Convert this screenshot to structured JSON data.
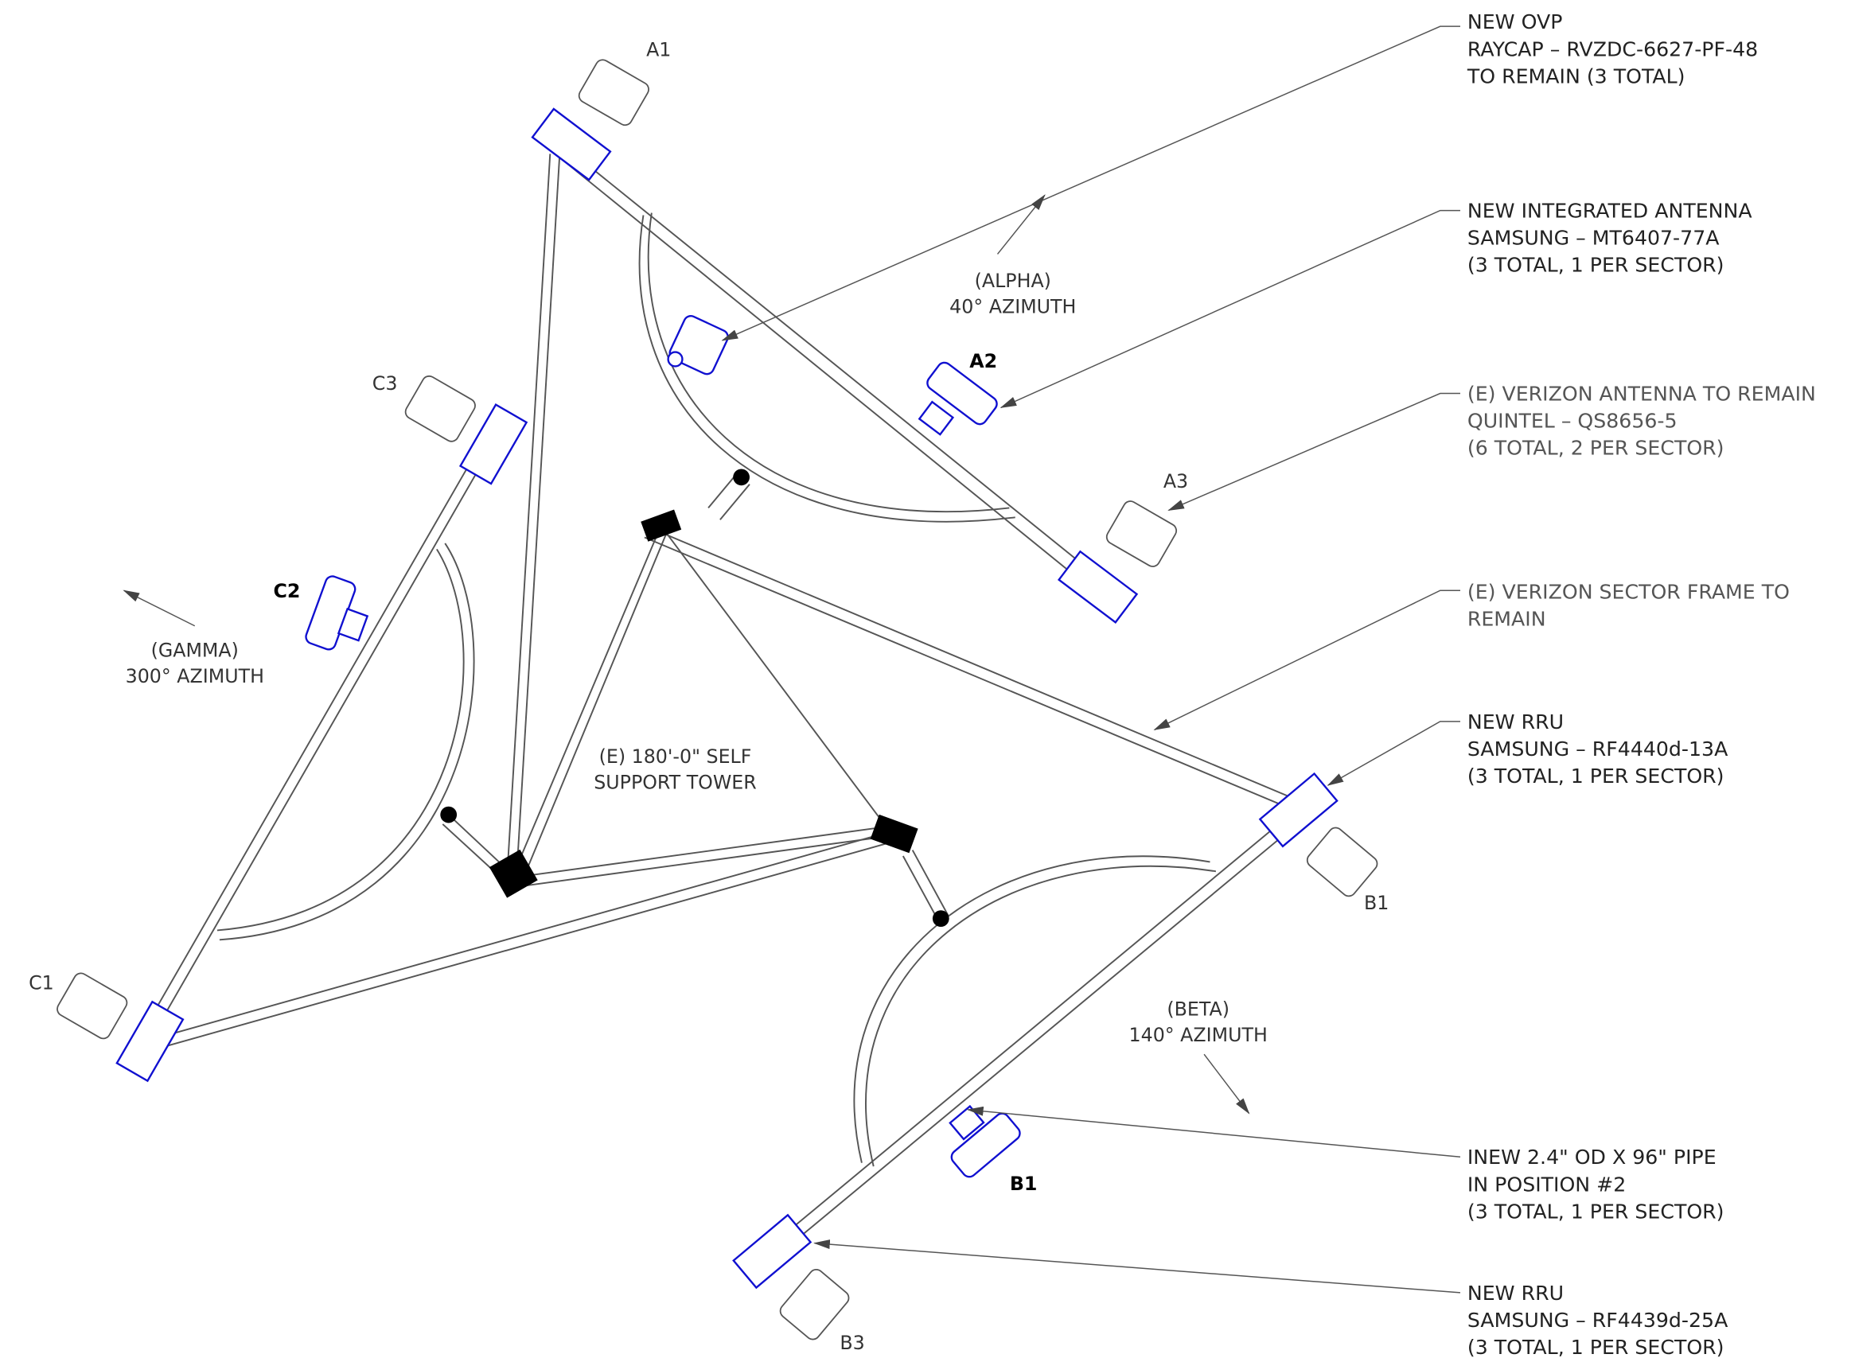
{
  "sectors": [
    {
      "name": "(ALPHA)",
      "azimuth": "40° AZIMUTH"
    },
    {
      "name": "(BETA)",
      "azimuth": "140° AZIMUTH"
    },
    {
      "name": "(GAMMA)",
      "azimuth": "300° AZIMUTH"
    }
  ],
  "tower": [
    "(E) 180'-0\" SELF",
    "SUPPORT TOWER"
  ],
  "positions": [
    "A1",
    "A2",
    "A3",
    "B1",
    "B1",
    "B3",
    "C1",
    "C2",
    "C3"
  ],
  "callouts": [
    {
      "lines": [
        "NEW OVP",
        "RAYCAP – RVZDC-6627-PF-48",
        "TO REMAIN (3 TOTAL)"
      ]
    },
    {
      "lines": [
        "NEW INTEGRATED ANTENNA",
        "SAMSUNG – MT6407-77A",
        "(3 TOTAL, 1 PER SECTOR)"
      ]
    },
    {
      "lines": [
        "(E) VERIZON ANTENNA TO REMAIN",
        "QUINTEL – QS8656-5",
        "(6 TOTAL, 2 PER SECTOR)"
      ]
    },
    {
      "lines": [
        "(E) VERIZON SECTOR FRAME TO",
        "REMAIN"
      ]
    },
    {
      "lines": [
        "NEW RRU",
        "SAMSUNG – RF4440d-13A",
        "(3 TOTAL, 1 PER SECTOR)"
      ]
    },
    {
      "lines": [
        "INEW 2.4\" OD X 96\" PIPE",
        "IN POSITION #2",
        "(3 TOTAL, 1 PER SECTOR)"
      ]
    },
    {
      "lines": [
        "NEW RRU",
        "SAMSUNG – RF4439d-25A",
        "(3 TOTAL, 1 PER SECTOR)"
      ]
    }
  ]
}
